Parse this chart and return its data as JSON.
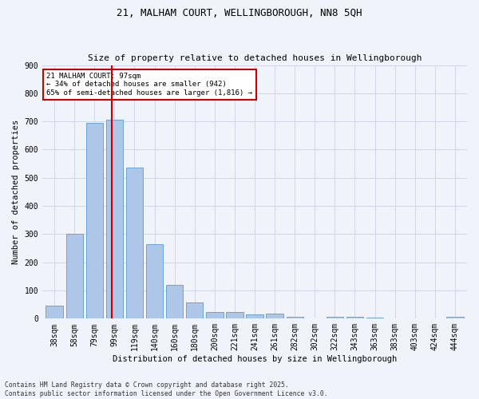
{
  "title_line1": "21, MALHAM COURT, WELLINGBOROUGH, NN8 5QH",
  "title_line2": "Size of property relative to detached houses in Wellingborough",
  "xlabel": "Distribution of detached houses by size in Wellingborough",
  "ylabel": "Number of detached properties",
  "categories": [
    "38sqm",
    "58sqm",
    "79sqm",
    "99sqm",
    "119sqm",
    "140sqm",
    "160sqm",
    "180sqm",
    "200sqm",
    "221sqm",
    "241sqm",
    "261sqm",
    "282sqm",
    "302sqm",
    "322sqm",
    "343sqm",
    "363sqm",
    "383sqm",
    "403sqm",
    "424sqm",
    "444sqm"
  ],
  "values": [
    45,
    300,
    695,
    705,
    535,
    265,
    120,
    58,
    25,
    25,
    15,
    18,
    8,
    2,
    8,
    8,
    3,
    2,
    2,
    1,
    8
  ],
  "bar_color": "#aec6e8",
  "bar_edge_color": "#5b9bd5",
  "vline_x": 2.85,
  "vline_color": "#cc0000",
  "annotation_text": "21 MALHAM COURT: 97sqm\n← 34% of detached houses are smaller (942)\n65% of semi-detached houses are larger (1,816) →",
  "annotation_box_color": "#ffffff",
  "annotation_box_edge": "#cc0000",
  "annotation_fontsize": 6.5,
  "ylim": [
    0,
    900
  ],
  "yticks": [
    0,
    100,
    200,
    300,
    400,
    500,
    600,
    700,
    800,
    900
  ],
  "grid_color": "#d0d8e8",
  "footer_line1": "Contains HM Land Registry data © Crown copyright and database right 2025.",
  "footer_line2": "Contains public sector information licensed under the Open Government Licence v3.0.",
  "bg_color": "#f0f4fa",
  "title_fontsize": 9,
  "subtitle_fontsize": 8,
  "axis_label_fontsize": 7.5,
  "tick_fontsize": 7,
  "ylabel_fontsize": 7.5
}
